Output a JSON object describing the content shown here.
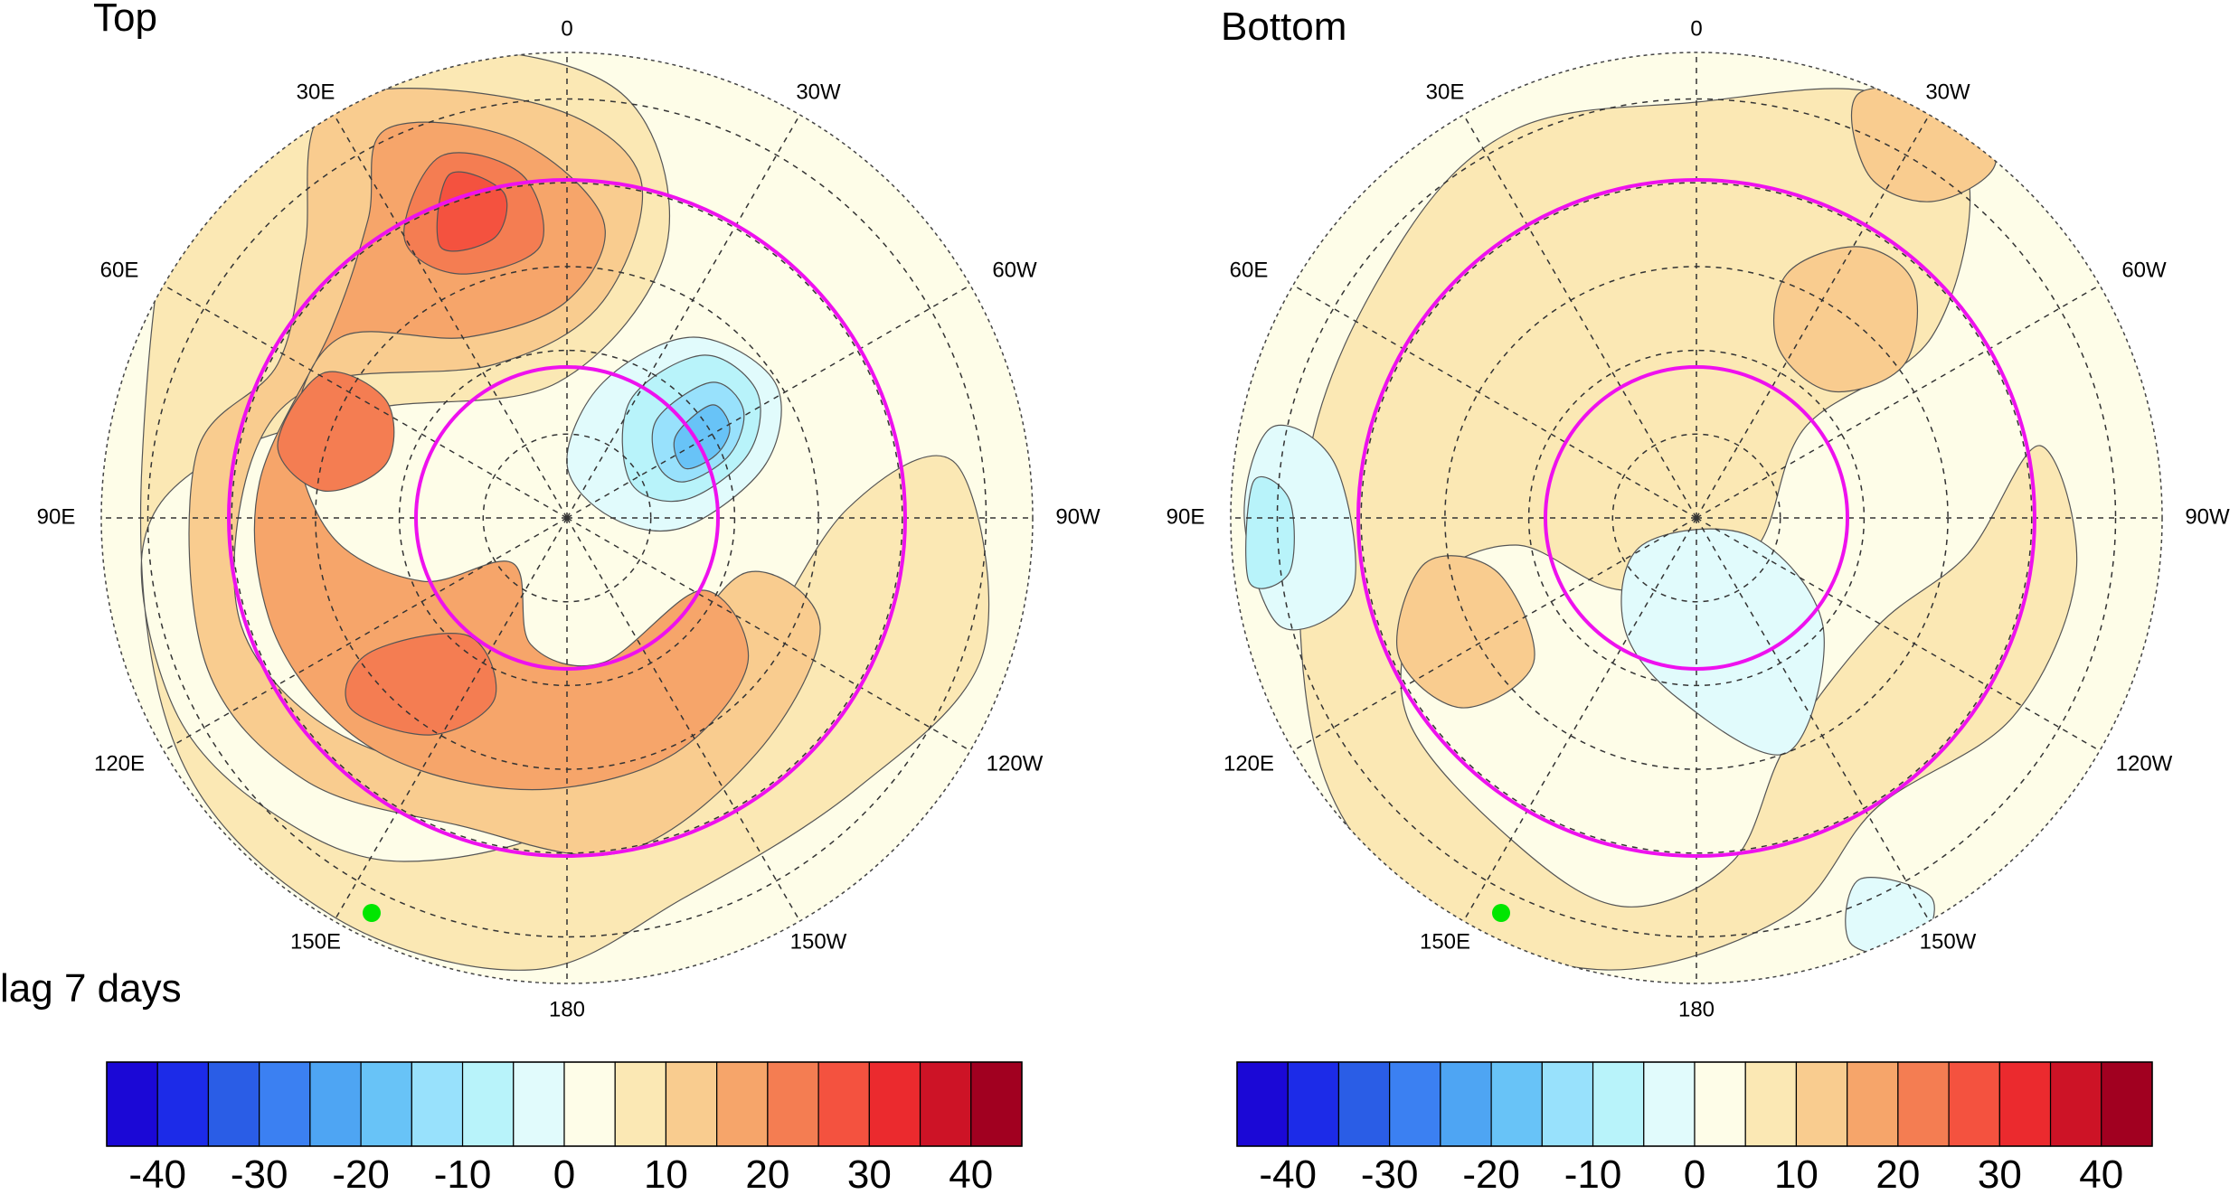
{
  "panels": [
    {
      "title": "Top",
      "key": "top"
    },
    {
      "title": "Bottom",
      "key": "bottom"
    }
  ],
  "caption": "lag 7 days",
  "lon_labels": [
    "0",
    "30W",
    "60W",
    "90W",
    "120W",
    "150W",
    "180",
    "150E",
    "120E",
    "90E",
    "60E",
    "30E"
  ],
  "colorbar": {
    "ticks": [
      "-40",
      "-30",
      "-20",
      "-10",
      "0",
      "10",
      "20",
      "30",
      "40"
    ],
    "colors": [
      "#1b08d6",
      "#1c2be8",
      "#2a5de6",
      "#3b80f2",
      "#4ea5f3",
      "#68c3f7",
      "#98e1fc",
      "#b8f3fa",
      "#e1fbfc",
      "#fefde8",
      "#fbe8b4",
      "#f9cc8f",
      "#f6a56a",
      "#f47d52",
      "#f4523f",
      "#eb2a2e",
      "#cd1326",
      "#a10020"
    ]
  },
  "markers": {
    "colors": {
      "circles": "#ee11ee",
      "point": "#00e600"
    }
  }
}
